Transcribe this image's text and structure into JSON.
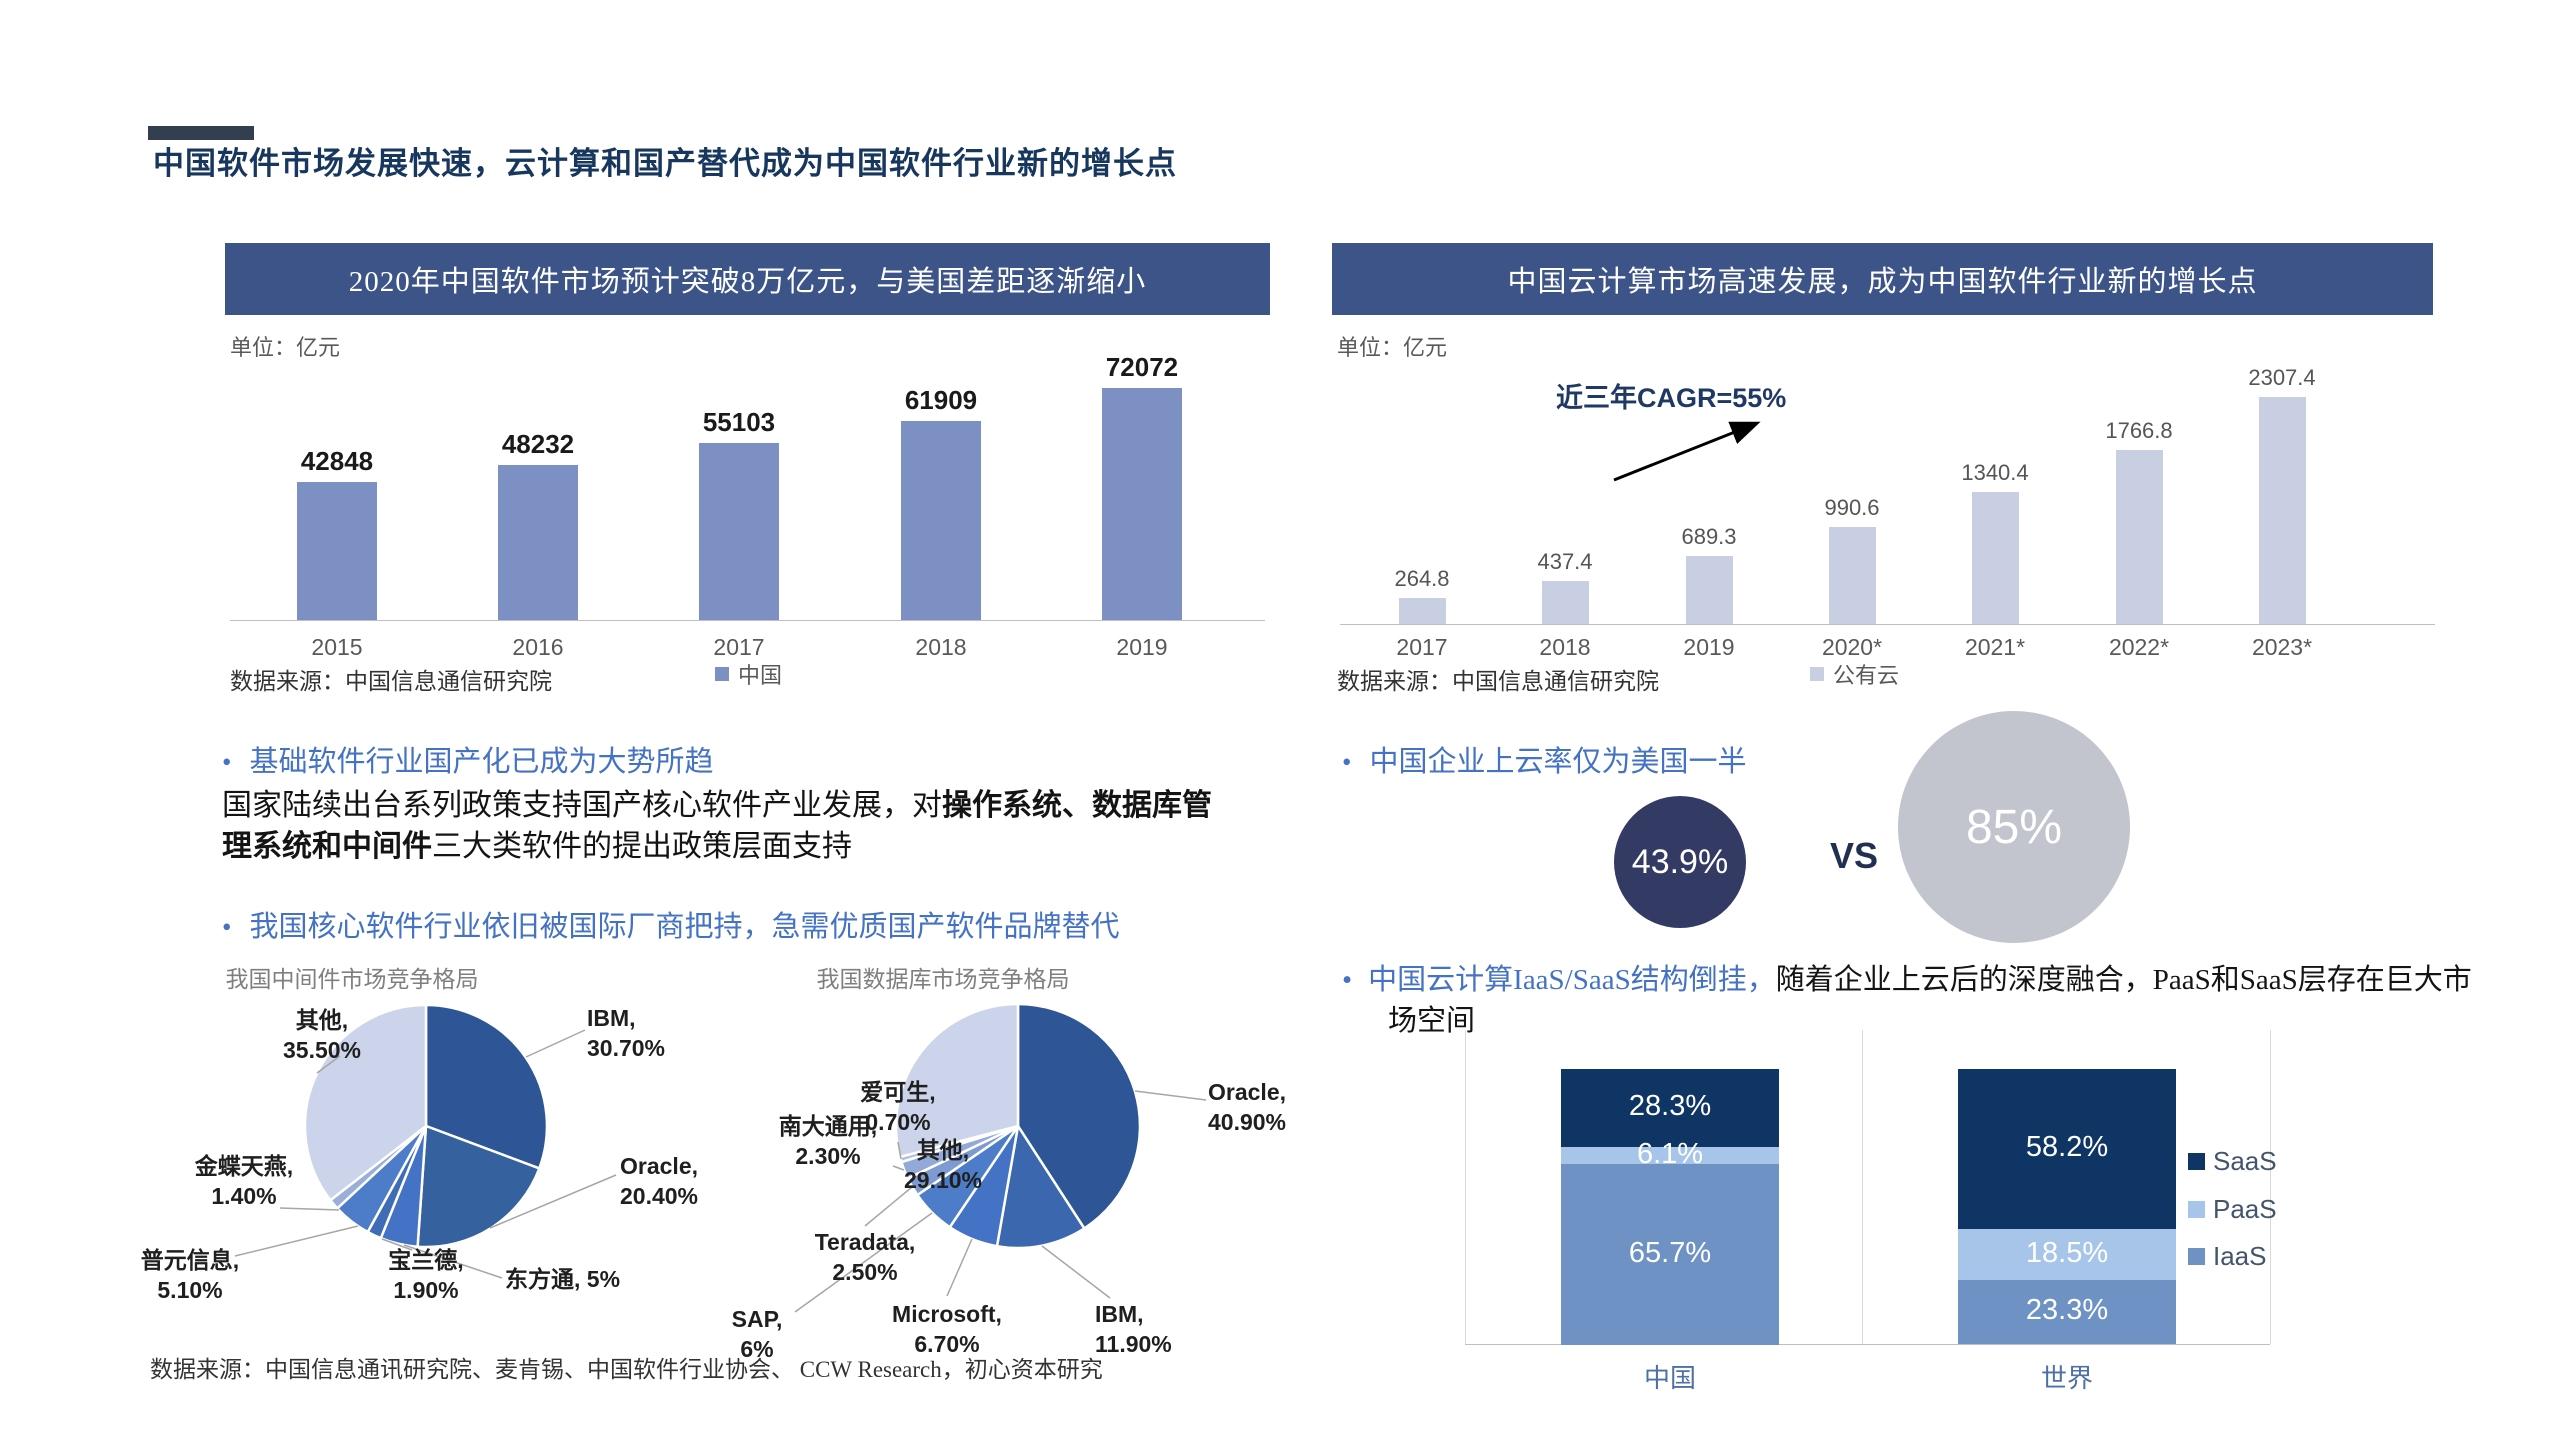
{
  "page": {
    "title": "中国软件市场发展快速，云计算和国产替代成为中国软件行业新的增长点"
  },
  "left": {
    "banner": "2020年中国软件市场预计突破8万亿元，与美国差距逐渐缩小",
    "unit": "单位：亿元",
    "source": "数据来源：中国信息通信研究院",
    "bullet1": "基础软件行业国产化已成为大势所趋",
    "para_pre": "国家陆续出台系列政策支持国产核心软件产业发展，对",
    "para_bold": "操作系统、数据库管理系统和中间件",
    "para_post": "三大类软件的提出政策层面支持",
    "bullet2": "我国核心软件行业依旧被国际厂商把持，急需优质国产软件品牌替代",
    "pies_source": "数据来源：中国信息通讯研究院、麦肯锡、中国软件行业协会、 CCW Research，初心资本研究"
  },
  "right": {
    "banner": "中国云计算市场高速发展，成为中国软件行业新的增长点",
    "unit": "单位：亿元",
    "source": "数据来源：中国信息通信研究院",
    "bullet_cloud": "中国企业上云率仅为美国一半",
    "china_rate": "43.9%",
    "vs": "VS",
    "world_rate": "85%",
    "bullet_iaas_blue": "中国云计算IaaS/SaaS结构倒挂，",
    "bullet_iaas_black": "随着企业上云后的深度融合，PaaS和SaaS层存在巨大市场空间"
  },
  "chart_data": [
    {
      "id": "china-software-market",
      "type": "bar",
      "title": "2020年中国软件市场预计突破8万亿元，与美国差距逐渐缩小",
      "unit": "亿元",
      "categories": [
        "2015",
        "2016",
        "2017",
        "2018",
        "2019"
      ],
      "values": [
        42848,
        48232,
        55103,
        61909,
        72072
      ],
      "legend": [
        "中国"
      ],
      "bar_color": "#7C90C3",
      "ylim": [
        0,
        80000
      ],
      "source": "数据来源：中国信息通信研究院"
    },
    {
      "id": "china-public-cloud-market",
      "type": "bar",
      "title": "中国云计算市场高速发展，成为中国软件行业新的增长点",
      "unit": "亿元",
      "categories": [
        "2017",
        "2018",
        "2019",
        "2020*",
        "2021*",
        "2022*",
        "2023*"
      ],
      "values": [
        264.8,
        437.4,
        689.3,
        990.6,
        1340.4,
        1766.8,
        2307.4
      ],
      "legend": [
        "公有云"
      ],
      "bar_color": "#C9CFE3",
      "annotation": "近三年CAGR=55%",
      "ylim": [
        0,
        2600
      ],
      "source": "数据来源：中国信息通信研究院"
    },
    {
      "id": "middleware-market-share",
      "type": "pie",
      "title": "我国中间件市场竞争格局",
      "labels": [
        "IBM",
        "Oracle",
        "东方通",
        "宝兰德",
        "普元信息",
        "金蝶天燕",
        "其他"
      ],
      "values": [
        30.7,
        20.4,
        5,
        1.9,
        5.1,
        1.4,
        35.5
      ],
      "display_values": [
        "30.70%",
        "20.40%",
        "5%",
        "1.90%",
        "5.10%",
        "1.40%",
        "35.50%"
      ],
      "colors": [
        "#2E5596",
        "#35619F",
        "#4472C4",
        "#3E6CB5",
        "#4D7CC9",
        "#9AAED8",
        "#CBD4EA"
      ]
    },
    {
      "id": "database-market-share",
      "type": "pie",
      "title": "我国数据库市场竞争格局",
      "labels": [
        "Oracle",
        "IBM",
        "Microsoft",
        "SAP",
        "Teradata",
        "南大通用",
        "爱可生",
        "其他"
      ],
      "values": [
        40.9,
        11.9,
        6.7,
        6,
        2.5,
        2.3,
        0.7,
        29.1
      ],
      "display_values": [
        "40.90%",
        "11.90%",
        "6.70%",
        "6%",
        "2.50%",
        "2.30%",
        "0.70%",
        "29.10%"
      ],
      "colors": [
        "#2E5596",
        "#3A67AD",
        "#4472C4",
        "#4D7CC9",
        "#7D9AD2",
        "#93A9D8",
        "#AFC0E2",
        "#CBD4EA"
      ]
    },
    {
      "id": "iaas-paas-saas-structure",
      "type": "bar",
      "stacked": true,
      "categories": [
        "中国",
        "世界"
      ],
      "series": [
        {
          "name": "SaaS",
          "values": [
            28.3,
            58.2
          ],
          "color": "#0F3564"
        },
        {
          "name": "PaaS",
          "values": [
            6.1,
            18.5
          ],
          "color": "#A7C5E8"
        },
        {
          "name": "IaaS",
          "values": [
            65.7,
            23.3
          ],
          "color": "#6D92C3"
        }
      ],
      "unit": "%",
      "legend_position": "right"
    }
  ]
}
